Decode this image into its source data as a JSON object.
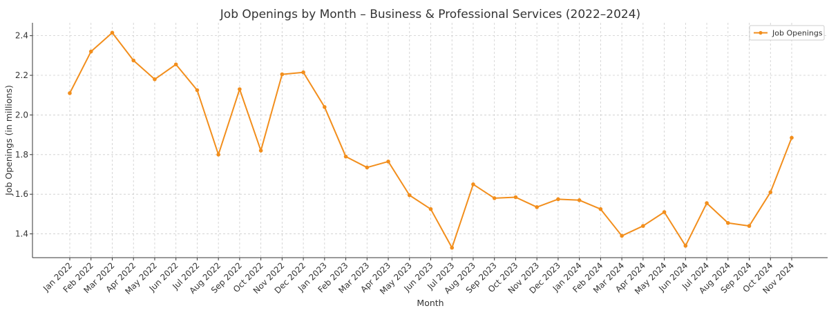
{
  "chart_data": {
    "type": "line",
    "title": "Job Openings by Month – Business & Professional Services (2022–2024)",
    "xlabel": "Month",
    "ylabel": "Job Openings (in millions)",
    "categories": [
      "Jan 2022",
      "Feb 2022",
      "Mar 2022",
      "Apr 2022",
      "May 2022",
      "Jun 2022",
      "Jul 2022",
      "Aug 2022",
      "Sep 2022",
      "Oct 2022",
      "Nov 2022",
      "Dec 2022",
      "Jan 2023",
      "Feb 2023",
      "Mar 2023",
      "Apr 2023",
      "May 2023",
      "Jun 2023",
      "Jul 2023",
      "Aug 2023",
      "Sep 2023",
      "Oct 2023",
      "Nov 2023",
      "Dec 2023",
      "Jan 2024",
      "Feb 2024",
      "Mar 2024",
      "Apr 2024",
      "May 2024",
      "Jun 2024",
      "Jul 2024",
      "Aug 2024",
      "Sep 2024",
      "Oct 2024",
      "Nov 2024"
    ],
    "series": [
      {
        "name": "Job Openings",
        "color": "#f28e1c",
        "values": [
          2.11,
          2.32,
          2.415,
          2.275,
          2.18,
          2.255,
          2.125,
          1.8,
          2.13,
          1.82,
          2.205,
          2.215,
          2.04,
          1.79,
          1.735,
          1.765,
          1.595,
          1.525,
          1.33,
          1.65,
          1.58,
          1.585,
          1.535,
          1.575,
          1.57,
          1.525,
          1.39,
          1.44,
          1.51,
          1.34,
          1.555,
          1.455,
          1.44,
          1.61,
          1.885
        ]
      }
    ],
    "yticks": [
      1.4,
      1.6,
      1.8,
      2.0,
      2.2,
      2.4
    ],
    "ytick_labels": [
      "1.4",
      "1.6",
      "1.8",
      "2.0",
      "2.2",
      "2.4"
    ],
    "ylim": [
      1.28,
      2.465
    ],
    "grid": true,
    "legend_position": "top-right"
  }
}
